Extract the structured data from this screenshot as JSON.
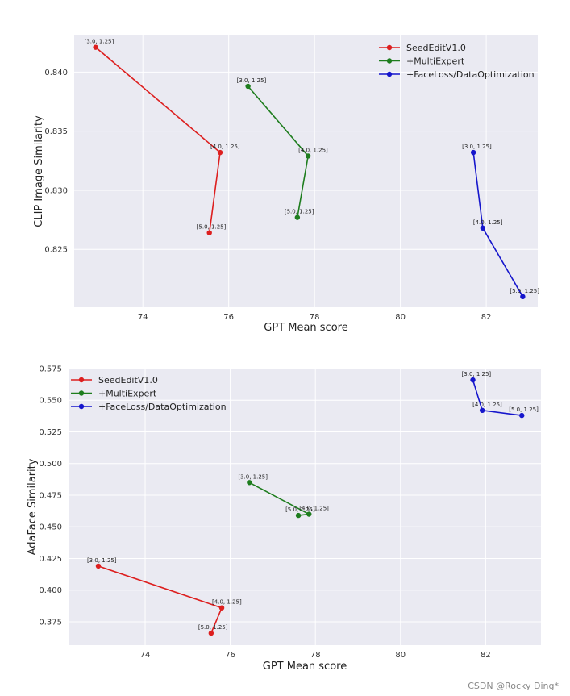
{
  "colors": {
    "plot_bg": "#eaeaf2",
    "grid": "#ffffff",
    "series": [
      "#dd1f1f",
      "#1e7d1e",
      "#1616cc"
    ]
  },
  "watermark": "CSDN @Rocky Ding*",
  "chart_data": [
    {
      "type": "line",
      "xlabel": "GPT Mean score",
      "ylabel": "CLIP Image Similarity",
      "xlim": [
        72.4,
        83.2
      ],
      "ylim": [
        0.8201,
        0.8431
      ],
      "xticks": [
        74,
        76,
        78,
        80,
        82
      ],
      "yticks": [
        0.825,
        0.83,
        0.835,
        0.84
      ],
      "ytick_labels": [
        "0.825",
        "0.830",
        "0.835",
        "0.840"
      ],
      "grid": true,
      "legend_position": "top-right",
      "series": [
        {
          "name": "SeedEditV1.0",
          "color": "#dd1f1f",
          "points": [
            {
              "x": 72.9,
              "y": 0.8421,
              "label": "[3.0, 1.25]"
            },
            {
              "x": 75.8,
              "y": 0.8332,
              "label": "[4.0, 1.25]"
            },
            {
              "x": 75.55,
              "y": 0.8264,
              "label": "[5.0, 1.25]"
            }
          ]
        },
        {
          "name": "+MultiExpert",
          "color": "#1e7d1e",
          "points": [
            {
              "x": 76.45,
              "y": 0.8388,
              "label": "[3.0, 1.25]"
            },
            {
              "x": 77.85,
              "y": 0.8329,
              "label": "[4.0, 1.25]"
            },
            {
              "x": 77.6,
              "y": 0.8277,
              "label": "[5.0, 1.25]"
            }
          ]
        },
        {
          "name": "+FaceLoss/DataOptimization",
          "color": "#1616cc",
          "points": [
            {
              "x": 81.7,
              "y": 0.8332,
              "label": "[3.0, 1.25]"
            },
            {
              "x": 81.92,
              "y": 0.8268,
              "label": "[4.0, 1.25]"
            },
            {
              "x": 82.85,
              "y": 0.821,
              "label": "[5.0, 1.25]"
            }
          ]
        }
      ]
    },
    {
      "type": "line",
      "xlabel": "GPT Mean score",
      "ylabel": "AdaFace Similarity",
      "xlim": [
        72.2,
        83.3
      ],
      "ylim": [
        0.3565,
        0.575
      ],
      "xticks": [
        74,
        76,
        78,
        80,
        82
      ],
      "yticks": [
        0.375,
        0.4,
        0.425,
        0.45,
        0.475,
        0.5,
        0.525,
        0.55,
        0.575
      ],
      "ytick_labels": [
        "0.375",
        "0.400",
        "0.425",
        "0.450",
        "0.475",
        "0.500",
        "0.525",
        "0.550",
        "0.575"
      ],
      "grid": true,
      "legend_position": "top-left",
      "series": [
        {
          "name": "SeedEditV1.0",
          "color": "#dd1f1f",
          "points": [
            {
              "x": 72.9,
              "y": 0.419,
              "label": "[3.0, 1.25]"
            },
            {
              "x": 75.8,
              "y": 0.386,
              "label": "[4.0, 1.25]"
            },
            {
              "x": 75.55,
              "y": 0.366,
              "label": "[5.0, 1.25]"
            }
          ]
        },
        {
          "name": "+MultiExpert",
          "color": "#1e7d1e",
          "points": [
            {
              "x": 76.45,
              "y": 0.485,
              "label": "[3.0, 1.25]"
            },
            {
              "x": 77.85,
              "y": 0.46,
              "label": "[4.0, 1.25]"
            },
            {
              "x": 77.6,
              "y": 0.459,
              "label": "[5.0, 1.25]"
            }
          ]
        },
        {
          "name": "+FaceLoss/DataOptimization",
          "color": "#1616cc",
          "points": [
            {
              "x": 81.7,
              "y": 0.566,
              "label": "[3.0, 1.25]"
            },
            {
              "x": 81.92,
              "y": 0.542,
              "label": "[4.0, 1.25]"
            },
            {
              "x": 82.85,
              "y": 0.538,
              "label": "[5.0, 1.25]"
            }
          ]
        }
      ]
    }
  ]
}
